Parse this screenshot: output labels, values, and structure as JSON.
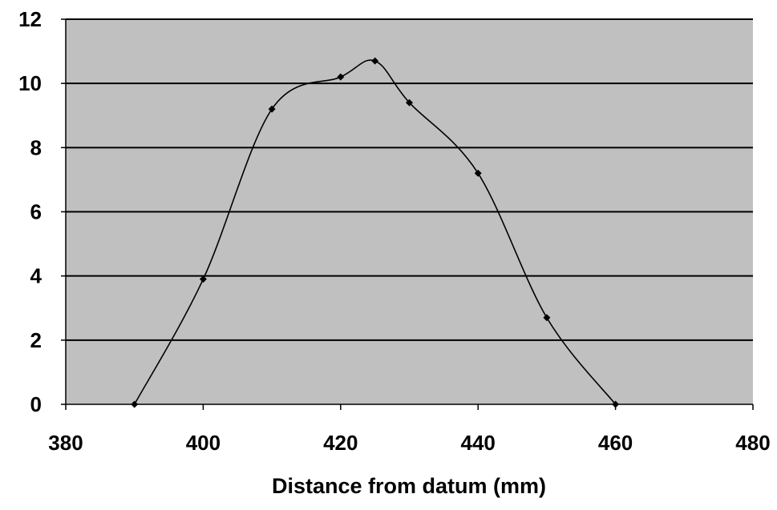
{
  "chart_data": {
    "type": "line",
    "title": "",
    "xlabel": "Distance from datum (mm)",
    "ylabel": "",
    "xlim": [
      380,
      480
    ],
    "ylim": [
      0,
      12
    ],
    "x_ticks": [
      "380",
      "400",
      "420",
      "440",
      "460",
      "480"
    ],
    "y_ticks": [
      "0",
      "2",
      "4",
      "6",
      "8",
      "10",
      "12"
    ],
    "grid": "horizontal",
    "legend": "none",
    "smooth": true,
    "series": [
      {
        "x": [
          390,
          400,
          410,
          420,
          425,
          430,
          440,
          450,
          460
        ],
        "y": [
          0,
          3.9,
          9.2,
          10.2,
          10.7,
          9.4,
          7.2,
          2.7,
          0
        ]
      }
    ],
    "colors": {
      "plot_background": "#c0c0c0",
      "gridline": "#000000",
      "line": "#000000",
      "marker": "#000000"
    }
  }
}
